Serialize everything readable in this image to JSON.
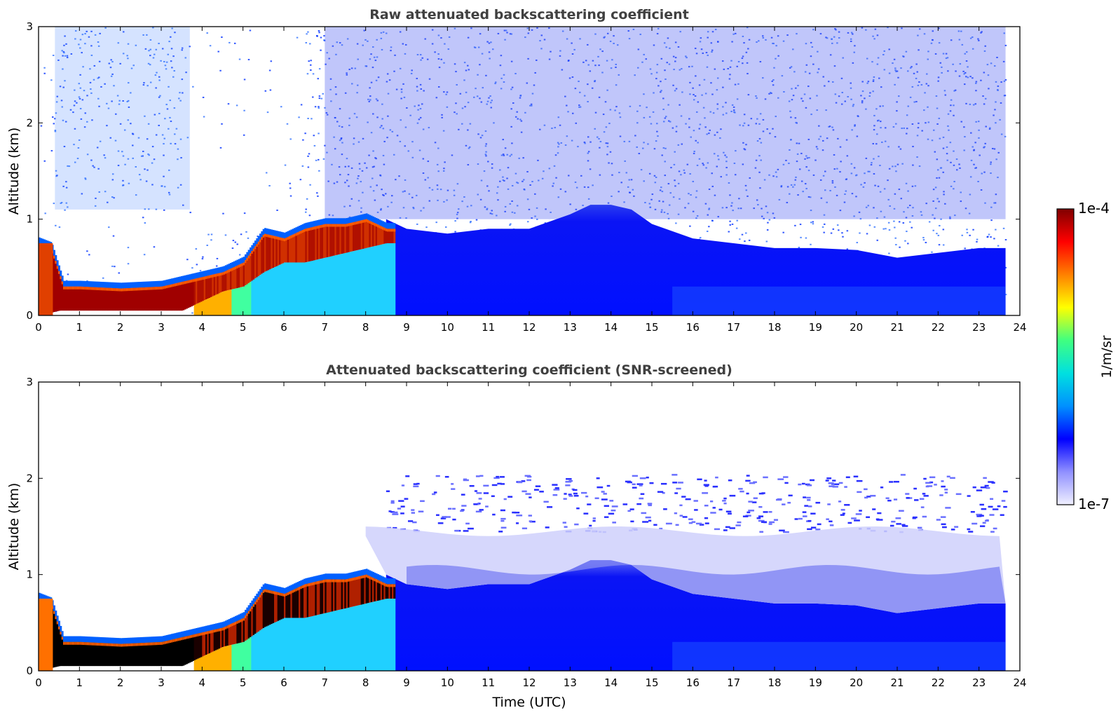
{
  "chart_data": [
    {
      "type": "heatmap",
      "title": "Raw attenuated backscattering coefficient",
      "xlabel": "",
      "ylabel": "Altitude (km)",
      "xlim": [
        0,
        24
      ],
      "ylim": [
        0,
        3
      ],
      "x_ticks": [
        "0",
        "1",
        "2",
        "3",
        "4",
        "5",
        "6",
        "7",
        "8",
        "9",
        "10",
        "11",
        "12",
        "13",
        "14",
        "15",
        "16",
        "17",
        "18",
        "19",
        "20",
        "21",
        "22",
        "23",
        "24"
      ],
      "y_ticks": [
        "0",
        "1",
        "2",
        "3"
      ],
      "data_end_time": 23.65,
      "noise": "heavy noise above the boundary layer",
      "layers": [
        {
          "name": "strong aerosol layer",
          "level": "1e-4",
          "top": [
            [
              0,
              0.75
            ],
            [
              0.3,
              0.7
            ],
            [
              0.6,
              0.3
            ],
            [
              1,
              0.3
            ],
            [
              2,
              0.28
            ],
            [
              3,
              0.3
            ],
            [
              3.5,
              0.35
            ],
            [
              4,
              0.4
            ],
            [
              4.5,
              0.45
            ],
            [
              5,
              0.55
            ],
            [
              5.5,
              0.85
            ],
            [
              6,
              0.8
            ],
            [
              6.5,
              0.9
            ],
            [
              7,
              0.95
            ],
            [
              7.5,
              0.95
            ],
            [
              8,
              1.0
            ],
            [
              8.5,
              0.9
            ]
          ],
          "bottom": [
            [
              0,
              0
            ],
            [
              0.5,
              0.05
            ],
            [
              1,
              0.05
            ],
            [
              2,
              0.05
            ],
            [
              3,
              0.05
            ],
            [
              3.5,
              0.05
            ],
            [
              4,
              0.15
            ],
            [
              4.5,
              0.25
            ],
            [
              5,
              0.3
            ],
            [
              5.5,
              0.45
            ],
            [
              6,
              0.55
            ],
            [
              6.5,
              0.55
            ],
            [
              7,
              0.6
            ],
            [
              7.5,
              0.65
            ],
            [
              8,
              0.7
            ],
            [
              8.5,
              0.75
            ]
          ]
        },
        {
          "name": "boundary layer",
          "level": "1e-6",
          "top": [
            [
              8.5,
              1.0
            ],
            [
              9,
              0.9
            ],
            [
              10,
              0.85
            ],
            [
              11,
              0.9
            ],
            [
              12,
              0.9
            ],
            [
              13,
              1.05
            ],
            [
              13.5,
              1.15
            ],
            [
              14,
              1.15
            ],
            [
              14.5,
              1.1
            ],
            [
              15,
              0.95
            ],
            [
              16,
              0.8
            ],
            [
              17,
              0.75
            ],
            [
              18,
              0.7
            ],
            [
              19,
              0.7
            ],
            [
              20,
              0.68
            ],
            [
              21,
              0.6
            ],
            [
              22,
              0.65
            ],
            [
              23,
              0.7
            ],
            [
              23.65,
              0.7
            ]
          ]
        }
      ]
    },
    {
      "type": "heatmap",
      "title": "Attenuated backscattering coefficient (SNR-screened)",
      "xlabel": "Time (UTC)",
      "ylabel": "Altitude (km)",
      "xlim": [
        0,
        24
      ],
      "ylim": [
        0,
        3
      ],
      "x_ticks": [
        "0",
        "1",
        "2",
        "3",
        "4",
        "5",
        "6",
        "7",
        "8",
        "9",
        "10",
        "11",
        "12",
        "13",
        "14",
        "15",
        "16",
        "17",
        "18",
        "19",
        "20",
        "21",
        "22",
        "23",
        "24"
      ],
      "y_ticks": [
        "0",
        "1",
        "2",
        "3"
      ],
      "data_end_time": 23.65,
      "noise": "screened; scattered speckle between 1.2 and 2.1 km after 8 UTC"
    }
  ],
  "colorbar": {
    "label": "1/m/sr",
    "min_label": "1e-7",
    "max_label": "1e-4",
    "colormap": "jet",
    "colors": [
      "#f0f0ff",
      "#9090ff",
      "#0000ff",
      "#0090ff",
      "#00e0e0",
      "#40ff80",
      "#ffff00",
      "#ff8000",
      "#ff0000",
      "#800000"
    ]
  }
}
